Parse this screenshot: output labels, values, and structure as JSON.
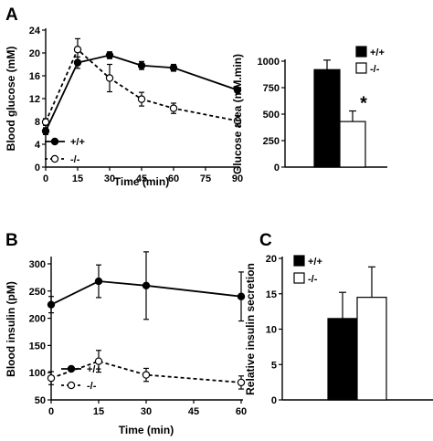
{
  "chart_data": [
    {
      "id": "A-line",
      "panel_label": "A",
      "type": "line",
      "xlabel": "Time (min)",
      "ylabel": "Blood glucose (mM)",
      "xticks": [
        0,
        15,
        30,
        45,
        60,
        75,
        90
      ],
      "yticks": [
        0,
        4,
        8,
        12,
        16,
        20,
        24
      ],
      "xlim": [
        0,
        90
      ],
      "ylim": [
        0,
        24
      ],
      "series": [
        {
          "name": "+/+",
          "style": "solid",
          "marker": "filled",
          "x": [
            0,
            15,
            30,
            45,
            60,
            90
          ],
          "y": [
            6.3,
            18.3,
            19.6,
            17.8,
            17.4,
            13.5
          ],
          "err": [
            0.6,
            1.0,
            0.6,
            0.7,
            0.6,
            0.4
          ]
        },
        {
          "name": "-/-",
          "style": "dashed",
          "marker": "open",
          "x": [
            0,
            15,
            30,
            45,
            60,
            90
          ],
          "y": [
            7.9,
            20.6,
            15.6,
            11.9,
            10.3,
            8.1
          ],
          "err": [
            0.6,
            1.9,
            2.4,
            1.2,
            0.9,
            0.9
          ]
        }
      ]
    },
    {
      "id": "A-bar",
      "type": "bar",
      "ylabel": "Glucose area (mM.min)",
      "yticks": [
        0,
        250,
        500,
        750,
        1000
      ],
      "ylim": [
        0,
        1000
      ],
      "series": [
        {
          "name": "+/+",
          "fill": "#000000",
          "value": 920,
          "err": 90
        },
        {
          "name": "-/-",
          "fill": "#ffffff",
          "value": 430,
          "err": 100
        }
      ],
      "annotations": [
        "*"
      ]
    },
    {
      "id": "B-line",
      "panel_label": "B",
      "type": "line",
      "xlabel": "Time (min)",
      "ylabel": "Blood insulin (pM)",
      "xticks": [
        0,
        15,
        30,
        45,
        60
      ],
      "yticks": [
        50,
        100,
        150,
        200,
        250,
        300
      ],
      "xlim": [
        0,
        60
      ],
      "ylim": [
        50,
        310
      ],
      "series": [
        {
          "name": "+/+",
          "style": "solid",
          "marker": "filled",
          "x": [
            0,
            15,
            30,
            60
          ],
          "y": [
            225,
            268,
            260,
            240
          ],
          "err": [
            15,
            30,
            62,
            45
          ]
        },
        {
          "name": "-/-",
          "style": "dashed",
          "marker": "open",
          "x": [
            0,
            15,
            30,
            60
          ],
          "y": [
            90,
            121,
            96,
            82
          ],
          "err": [
            12,
            20,
            12,
            12
          ]
        }
      ]
    },
    {
      "id": "C-bar",
      "panel_label": "C",
      "type": "bar",
      "ylabel": "Relative insulin secretion",
      "yticks": [
        0,
        5,
        10,
        15,
        20
      ],
      "ylim": [
        0,
        20
      ],
      "series": [
        {
          "name": "+/+",
          "fill": "#000000",
          "value": 11.5,
          "err": 3.7
        },
        {
          "name": "-/-",
          "fill": "#ffffff",
          "value": 14.5,
          "err": 4.3
        }
      ]
    }
  ]
}
